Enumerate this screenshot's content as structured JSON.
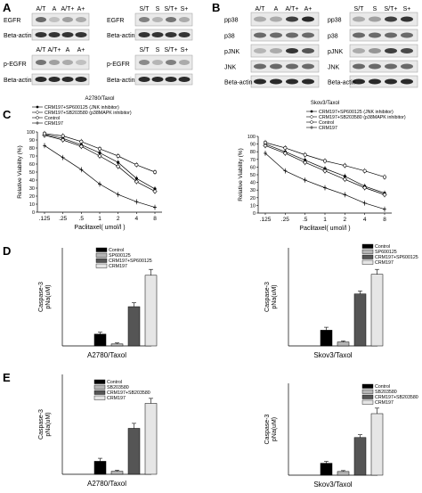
{
  "panel_letters": {
    "A": "A",
    "B": "B",
    "C": "C",
    "D": "D",
    "E": "E"
  },
  "panelA": {
    "left": {
      "lanes_top": [
        "A/T",
        "A",
        "A/T+",
        "A+"
      ],
      "lanes_bottom": [
        "A/T",
        "A/T+",
        "A",
        "A+"
      ],
      "row_labels": [
        "EGFR",
        "Beta-actin",
        "p-EGFR",
        "Beta-actin"
      ],
      "top_bands": [
        0.6,
        0.2,
        0.35,
        0.3
      ],
      "bottom_bands": [
        0.55,
        0.35,
        0.3,
        0.2
      ]
    },
    "right": {
      "lanes_top": [
        "S/T",
        "S",
        "S/T+",
        "S+"
      ],
      "lanes_bottom": [
        "S/T",
        "S",
        "S/T+",
        "S+"
      ],
      "row_labels": [
        "EGFR",
        "Beta-actin",
        "p-EGFR",
        "Beta-actin"
      ],
      "top_bands": [
        0.5,
        0.25,
        0.55,
        0.3
      ],
      "bottom_bands": [
        0.45,
        0.25,
        0.5,
        0.3
      ]
    }
  },
  "panelB": {
    "left": {
      "lanes": [
        "A/T",
        "A",
        "A/T+",
        "A+"
      ],
      "row_labels": [
        "pp38",
        "p38",
        "pJNK",
        "JNK",
        "Beta-actin"
      ],
      "pp38_bands": [
        0.3,
        0.3,
        0.8,
        0.9
      ],
      "pjnk_bands": [
        0.25,
        0.3,
        0.85,
        0.7
      ]
    },
    "right": {
      "lanes": [
        "S/T",
        "S",
        "S/T+",
        "S+"
      ],
      "row_labels": [
        "pp38",
        "p38",
        "pJNK",
        "JNK",
        "Beta-actin"
      ],
      "pp38_bands": [
        0.3,
        0.35,
        0.8,
        0.85
      ],
      "pjnk_bands": [
        0.3,
        0.4,
        0.8,
        0.75
      ]
    }
  },
  "colors": {
    "line": "#000000",
    "bar_control": "#000000",
    "bar_inhibitor": "#b5b5b5",
    "bar_combo": "#555555",
    "bar_crm197": "#e6e6e6"
  },
  "chart_data": [
    {
      "id": "C-left",
      "type": "line",
      "title": "A2780/Taxol",
      "xlabel": "Paclitaxel( umol/l )",
      "ylabel": "Relative Viability (%)",
      "categories": [
        ".125",
        ".25",
        ".5",
        "1",
        "2",
        "4",
        "8"
      ],
      "ylim": [
        0,
        100
      ],
      "yticks": [
        "0",
        "10",
        "20",
        "30",
        "40",
        "50",
        "60",
        "70",
        "80",
        "90",
        "100"
      ],
      "series": [
        {
          "name": "CRM197+SP600125 (JNK inhibitor)",
          "marker": "filled-circle",
          "values": [
            97,
            92,
            84,
            74,
            62,
            42,
            29
          ]
        },
        {
          "name": "CRM197+SB203580 (p38MAPK inhibitor)",
          "marker": "open-diamond",
          "values": [
            96,
            90,
            82,
            70,
            57,
            38,
            26
          ]
        },
        {
          "name": "Control",
          "marker": "open-circle",
          "values": [
            98,
            95,
            88,
            79,
            70,
            59,
            50
          ]
        },
        {
          "name": "CRM197",
          "marker": "cross",
          "values": [
            83,
            68,
            53,
            35,
            22,
            13,
            6
          ]
        }
      ]
    },
    {
      "id": "C-right",
      "type": "line",
      "title": "Skov3/Taxol",
      "xlabel": "Paclitaxel( umol/l )",
      "ylabel": "Relative Viability (%)",
      "categories": [
        ".125",
        ".25",
        ".5",
        "1",
        "2",
        "4",
        "8"
      ],
      "ylim": [
        0,
        100
      ],
      "yticks": [
        "0",
        "10",
        "20",
        "30",
        "40",
        "50",
        "60",
        "70",
        "80",
        "90",
        "100"
      ],
      "series": [
        {
          "name": "CRM197+SP600125 (JNK inhibitor)",
          "marker": "filled-circle",
          "values": [
            90,
            80,
            69,
            58,
            48,
            35,
            26
          ]
        },
        {
          "name": "CRM197+SB203580 (p38MAPK inhibitor)",
          "marker": "open-diamond",
          "values": [
            88,
            78,
            66,
            55,
            44,
            33,
            24
          ]
        },
        {
          "name": "Control",
          "marker": "open-circle",
          "values": [
            92,
            85,
            76,
            68,
            62,
            55,
            47
          ]
        },
        {
          "name": "CRM197",
          "marker": "cross",
          "values": [
            78,
            55,
            43,
            33,
            24,
            13,
            5
          ]
        }
      ]
    },
    {
      "id": "D-left",
      "type": "bar",
      "title": "",
      "xlabel": "A2780/Taxol",
      "ylabel": "Caspase-3 pNa(uM)",
      "categories": [
        "Control",
        "SP600125",
        "CRM197+SP600125",
        "CRM197"
      ],
      "values": [
        12,
        2,
        40,
        72
      ],
      "errors": [
        2,
        1,
        4,
        6
      ],
      "ylim": [
        0,
        100
      ]
    },
    {
      "id": "D-right",
      "type": "bar",
      "title": "",
      "xlabel": "Skov3/Taxol",
      "ylabel": "Caspase-3 pNa(uM)",
      "categories": [
        "Control",
        "SP600125",
        "CRM197+SP600125",
        "CRM197"
      ],
      "values": [
        16,
        4,
        53,
        73
      ],
      "errors": [
        3,
        1,
        3,
        5
      ],
      "ylim": [
        0,
        100
      ]
    },
    {
      "id": "E-left",
      "type": "bar",
      "title": "",
      "xlabel": "A2780/Taxol",
      "ylabel": "Caspase-3 pNa(uM)",
      "categories": [
        "Control",
        "SB203580",
        "CRM197+SB203580",
        "CRM197"
      ],
      "values": [
        13,
        3,
        46,
        71
      ],
      "errors": [
        3,
        1,
        5,
        5
      ],
      "ylim": [
        0,
        100
      ]
    },
    {
      "id": "E-right",
      "type": "bar",
      "title": "",
      "xlabel": "Skov3/Taxol",
      "ylabel": "Caspase-3 pNa(uM)",
      "categories": [
        "Control",
        "SB203580",
        "CRM197+SB203580",
        "CRM197"
      ],
      "values": [
        13,
        4,
        41,
        67
      ],
      "errors": [
        2,
        1,
        3,
        6
      ],
      "ylim": [
        0,
        100
      ]
    }
  ]
}
